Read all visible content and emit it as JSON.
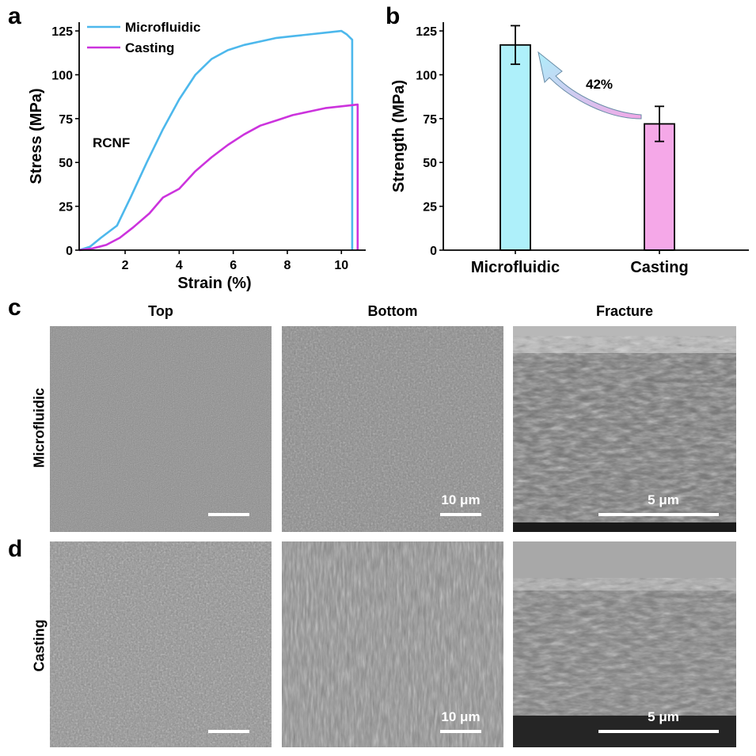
{
  "panels": {
    "a": "a",
    "b": "b",
    "c": "c",
    "d": "d"
  },
  "chart_data": [
    {
      "type": "line",
      "xlabel": "Strain (%)",
      "ylabel": "Stress (MPa)",
      "xlim": [
        0.3,
        10.9
      ],
      "ylim": [
        0,
        130
      ],
      "xticks": [
        2,
        4,
        6,
        8,
        10
      ],
      "yticks": [
        0,
        25,
        50,
        75,
        100,
        125
      ],
      "annotation": "RCNF",
      "legend_position": "top-left",
      "series": [
        {
          "name": "Microfluidic",
          "color": "#4db8ec",
          "x": [
            0.3,
            0.7,
            1.1,
            1.7,
            2.2,
            2.8,
            3.4,
            4.0,
            4.6,
            5.2,
            5.8,
            6.4,
            7.0,
            7.6,
            8.2,
            8.8,
            9.4,
            10.0,
            10.2,
            10.4,
            10.4
          ],
          "y": [
            0,
            2,
            7,
            14,
            30,
            50,
            69,
            86,
            100,
            109,
            114,
            117,
            119,
            121,
            122,
            123,
            124,
            125,
            123,
            120,
            0
          ]
        },
        {
          "name": "Casting",
          "color": "#cc33dd",
          "x": [
            0.3,
            0.8,
            1.3,
            1.8,
            2.3,
            2.9,
            3.4,
            4.0,
            4.6,
            5.2,
            5.8,
            6.4,
            7.0,
            7.6,
            8.2,
            8.8,
            9.4,
            10.0,
            10.6,
            10.6
          ],
          "y": [
            0,
            1,
            3,
            7,
            13,
            21,
            30,
            35,
            45,
            53,
            60,
            66,
            71,
            74,
            77,
            79,
            81,
            82,
            83,
            0
          ]
        }
      ]
    },
    {
      "type": "bar",
      "ylabel": "Strength (MPa)",
      "ylim": [
        0,
        130
      ],
      "yticks": [
        0,
        25,
        50,
        75,
        100,
        125
      ],
      "categories": [
        "Microfluidic",
        "Casting"
      ],
      "values": [
        117,
        72
      ],
      "errors": [
        11,
        10
      ],
      "colors": [
        "#aef0fa",
        "#f5a8e8"
      ],
      "annotation": "42%"
    }
  ],
  "sem": {
    "columns": [
      "Top",
      "Bottom",
      "Fracture"
    ],
    "rows": [
      "Microfluidic",
      "Casting"
    ],
    "scale_bars": {
      "c_bottom": "10 μm",
      "c_fracture": "5 μm",
      "d_bottom": "10 μm",
      "d_fracture": "5 μm"
    }
  }
}
